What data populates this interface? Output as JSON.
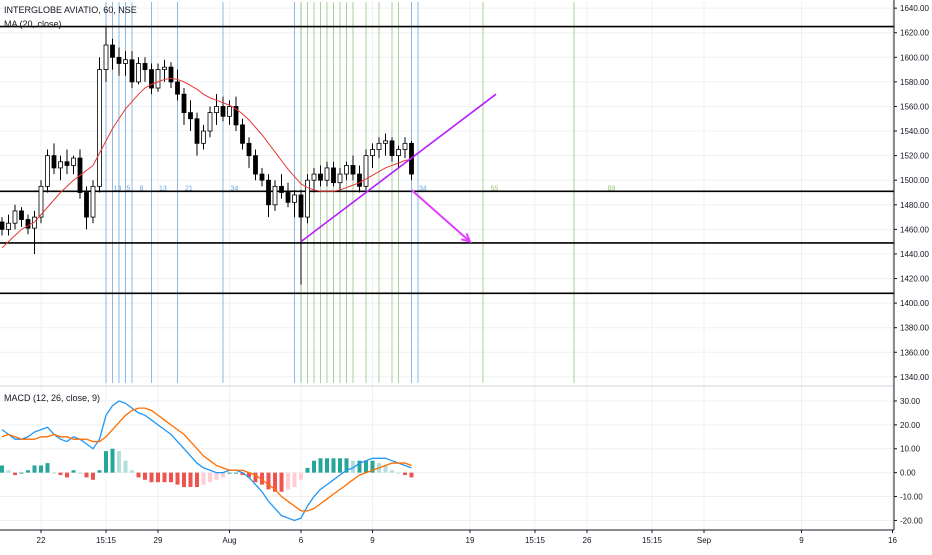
{
  "header": {
    "symbol_line": "INTERGLOBE AVIATIO, 60, NSE",
    "ma_label": "MA (20, close)",
    "macd_label": "MACD (12, 26, close, 9)"
  },
  "colors": {
    "background": "#ffffff",
    "grid": "#eef0f4",
    "axis": "#131722",
    "candle_up": "#ffffff",
    "candle_down": "#000000",
    "candle_border": "#000000",
    "ma_line": "#e53935",
    "macd_line": "#2196f3",
    "signal_line": "#ff6d00",
    "hist_pos_strong": "#26a69a",
    "hist_pos_weak": "#b2dfdb",
    "hist_neg_strong": "#ef5350",
    "hist_neg_weak": "#ffcdd2",
    "trendline": "#b71cff",
    "arrow": "#e040fb",
    "vline_blue": "#6fa8dc",
    "vline_green": "#93c47d",
    "level_line": "#000000"
  },
  "chart_data": [
    {
      "type": "candlestick",
      "title": "INTERGLOBE AVIATIO, 60, NSE",
      "indicator": "MA (20, close)",
      "ylim": [
        1335,
        1645
      ],
      "y_ticks": [
        "1340.00",
        "1360.00",
        "1380.00",
        "1400.00",
        "1420.00",
        "1440.00",
        "1460.00",
        "1480.00",
        "1500.00",
        "1520.00",
        "1540.00",
        "1560.00",
        "1580.00",
        "1600.00",
        "1620.00",
        "1640.00"
      ],
      "x_labels": [
        {
          "label": "22",
          "bar": 6
        },
        {
          "label": "15:15",
          "bar": 16
        },
        {
          "label": "29",
          "bar": 24
        },
        {
          "label": "Aug",
          "bar": 35
        },
        {
          "label": "6",
          "bar": 46
        },
        {
          "label": "9",
          "bar": 57
        },
        {
          "label": "19",
          "bar": 72
        },
        {
          "label": "15:15",
          "bar": 82
        },
        {
          "label": "26",
          "bar": 90
        },
        {
          "label": "15:15",
          "bar": 100
        },
        {
          "label": "Sep",
          "bar": 108
        },
        {
          "label": "9",
          "bar": 123
        },
        {
          "label": "16",
          "bar": 137
        }
      ],
      "candles": [
        [
          1466,
          1470,
          1455,
          1460
        ],
        [
          1460,
          1472,
          1455,
          1465
        ],
        [
          1465,
          1480,
          1460,
          1475
        ],
        [
          1475,
          1478,
          1462,
          1468
        ],
        [
          1468,
          1472,
          1456,
          1461
        ],
        [
          1461,
          1475,
          1440,
          1470
        ],
        [
          1470,
          1500,
          1465,
          1495
        ],
        [
          1495,
          1525,
          1490,
          1520
        ],
        [
          1520,
          1530,
          1505,
          1510
        ],
        [
          1510,
          1520,
          1500,
          1515
        ],
        [
          1515,
          1525,
          1505,
          1512
        ],
        [
          1512,
          1520,
          1505,
          1518
        ],
        [
          1518,
          1525,
          1485,
          1490
        ],
        [
          1490,
          1495,
          1460,
          1470
        ],
        [
          1470,
          1500,
          1465,
          1495
        ],
        [
          1495,
          1600,
          1490,
          1590
        ],
        [
          1590,
          1625,
          1580,
          1610
        ],
        [
          1610,
          1615,
          1590,
          1600
        ],
        [
          1600,
          1608,
          1585,
          1595
        ],
        [
          1595,
          1605,
          1585,
          1598
        ],
        [
          1598,
          1605,
          1575,
          1580
        ],
        [
          1580,
          1600,
          1578,
          1595
        ],
        [
          1595,
          1600,
          1580,
          1590
        ],
        [
          1590,
          1595,
          1570,
          1575
        ],
        [
          1575,
          1595,
          1572,
          1590
        ],
        [
          1590,
          1598,
          1580,
          1592
        ],
        [
          1592,
          1596,
          1575,
          1580
        ],
        [
          1580,
          1590,
          1565,
          1570
        ],
        [
          1570,
          1575,
          1545,
          1555
        ],
        [
          1555,
          1565,
          1540,
          1550
        ],
        [
          1550,
          1555,
          1520,
          1530
        ],
        [
          1530,
          1545,
          1525,
          1540
        ],
        [
          1540,
          1560,
          1535,
          1555
        ],
        [
          1555,
          1570,
          1545,
          1560
        ],
        [
          1560,
          1568,
          1548,
          1552
        ],
        [
          1552,
          1565,
          1545,
          1560
        ],
        [
          1560,
          1568,
          1540,
          1545
        ],
        [
          1545,
          1550,
          1525,
          1530
        ],
        [
          1530,
          1535,
          1510,
          1520
        ],
        [
          1520,
          1525,
          1500,
          1505
        ],
        [
          1505,
          1510,
          1495,
          1500
        ],
        [
          1500,
          1505,
          1470,
          1480
        ],
        [
          1480,
          1500,
          1475,
          1495
        ],
        [
          1495,
          1505,
          1485,
          1490
        ],
        [
          1490,
          1498,
          1478,
          1482
        ],
        [
          1482,
          1492,
          1470,
          1488
        ],
        [
          1488,
          1492,
          1415,
          1470
        ],
        [
          1470,
          1505,
          1465,
          1500
        ],
        [
          1500,
          1510,
          1490,
          1505
        ],
        [
          1505,
          1512,
          1495,
          1500
        ],
        [
          1500,
          1515,
          1495,
          1510
        ],
        [
          1510,
          1515,
          1495,
          1498
        ],
        [
          1498,
          1510,
          1492,
          1505
        ],
        [
          1505,
          1515,
          1500,
          1512
        ],
        [
          1512,
          1520,
          1500,
          1505
        ],
        [
          1505,
          1512,
          1490,
          1495
        ],
        [
          1495,
          1525,
          1492,
          1520
        ],
        [
          1520,
          1530,
          1510,
          1525
        ],
        [
          1525,
          1535,
          1518,
          1530
        ],
        [
          1530,
          1538,
          1520,
          1532
        ],
        [
          1532,
          1535,
          1515,
          1520
        ],
        [
          1520,
          1528,
          1510,
          1525
        ],
        [
          1525,
          1535,
          1518,
          1530
        ],
        [
          1530,
          1532,
          1500,
          1505
        ]
      ],
      "ma": [
        1445,
        1450,
        1455,
        1460,
        1463,
        1466,
        1472,
        1478,
        1484,
        1490,
        1495,
        1500,
        1504,
        1508,
        1512,
        1522,
        1532,
        1542,
        1550,
        1558,
        1564,
        1570,
        1575,
        1578,
        1580,
        1582,
        1583,
        1582,
        1580,
        1577,
        1574,
        1570,
        1567,
        1565,
        1563,
        1561,
        1558,
        1554,
        1549,
        1543,
        1537,
        1530,
        1523,
        1516,
        1509,
        1503,
        1497,
        1494,
        1492,
        1491,
        1491,
        1491,
        1492,
        1494,
        1496,
        1498,
        1501,
        1504,
        1507,
        1510,
        1512,
        1514,
        1516,
        1517
      ],
      "horizontal_levels": [
        1625,
        1491,
        1449,
        1408
      ],
      "trendline": {
        "from": {
          "bar": 46,
          "price": 1450
        },
        "to": {
          "bar": 76,
          "price": 1570
        }
      },
      "arrow": {
        "from": {
          "bar": 63,
          "price": 1492
        },
        "to": {
          "bar": 72,
          "price": 1450
        }
      },
      "vlines_blue": [
        16,
        17,
        18,
        19,
        20,
        23,
        27,
        34,
        45,
        46,
        63,
        64
      ],
      "vlines_green": [
        46,
        47,
        48,
        49,
        50,
        51,
        52,
        53,
        54,
        56,
        58,
        60,
        61,
        74,
        88
      ],
      "fib_labels": [
        {
          "label": "13",
          "bar": 17
        },
        {
          "label": "5",
          "bar": 19
        },
        {
          "label": "8",
          "bar": 21
        },
        {
          "label": "13",
          "bar": 24
        },
        {
          "label": "21",
          "bar": 28
        },
        {
          "label": "34",
          "bar": 35
        },
        {
          "label": "34",
          "bar": 64
        },
        {
          "label": "55",
          "bar": 75
        },
        {
          "label": "89",
          "bar": 93
        }
      ]
    },
    {
      "type": "bar",
      "title": "MACD (12, 26, close, 9)",
      "ylim": [
        -24,
        35
      ],
      "y_ticks": [
        "30.00",
        "20.00",
        "10.00",
        "0.00",
        "-10.00",
        "-20.00"
      ],
      "macd": [
        18,
        16,
        14,
        14,
        15,
        17,
        18,
        19,
        16,
        14,
        13,
        15,
        14,
        12,
        10,
        14,
        24,
        28,
        30,
        29,
        27,
        25,
        24,
        22,
        20,
        18,
        16,
        13,
        10,
        7,
        4,
        2,
        1,
        0,
        0,
        1,
        1,
        0,
        -2,
        -5,
        -8,
        -12,
        -15,
        -18,
        -19,
        -20,
        -19,
        -14,
        -10,
        -7,
        -5,
        -3,
        -1,
        1,
        2,
        4,
        5,
        6,
        6,
        6,
        5,
        4,
        3,
        2
      ],
      "signal": [
        15,
        16,
        15,
        14,
        14,
        14,
        15,
        15,
        16,
        15,
        15,
        14,
        14,
        14,
        13,
        13,
        15,
        18,
        21,
        24,
        26,
        27,
        27,
        26,
        24,
        22,
        20,
        18,
        16,
        13,
        10,
        7,
        5,
        3,
        2,
        1,
        1,
        1,
        0,
        -1,
        -3,
        -5,
        -7,
        -10,
        -12,
        -14,
        -16,
        -16,
        -15,
        -13,
        -11,
        -9,
        -7,
        -5,
        -3,
        -1,
        0,
        1,
        2,
        3,
        4,
        4,
        4,
        3
      ],
      "histogram": [
        3,
        1,
        -1,
        0,
        1,
        3,
        3,
        4,
        0,
        -1,
        -2,
        1,
        0,
        -2,
        -3,
        1,
        9,
        10,
        9,
        5,
        1,
        -2,
        -3,
        -4,
        -4,
        -4,
        -4,
        -5,
        -6,
        -6,
        -6,
        -5,
        -4,
        -3,
        -2,
        0,
        0,
        -1,
        -2,
        -4,
        -5,
        -7,
        -8,
        -8,
        -7,
        -6,
        -3,
        2,
        5,
        6,
        6,
        6,
        6,
        6,
        5,
        5,
        5,
        5,
        4,
        3,
        1,
        0,
        -1,
        -2
      ]
    }
  ]
}
